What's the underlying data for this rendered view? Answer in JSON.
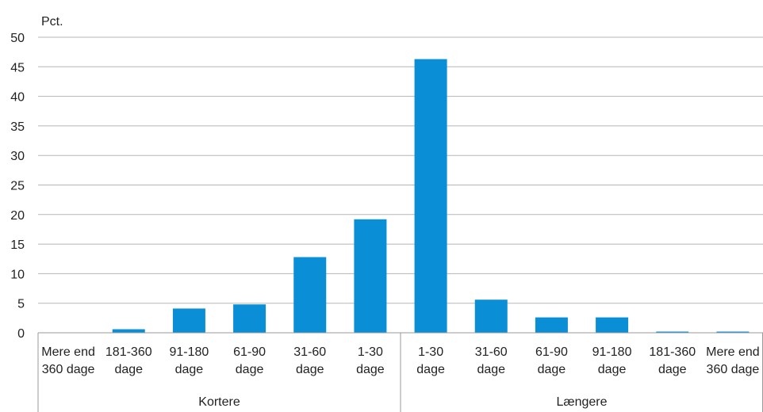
{
  "chart_data": {
    "type": "bar",
    "ylabel": "Pct.",
    "ylim": [
      0,
      50
    ],
    "yticks": [
      0,
      5,
      10,
      15,
      20,
      25,
      30,
      35,
      40,
      45,
      50
    ],
    "grid": true,
    "categories": [
      [
        "Mere end",
        "360 dage"
      ],
      [
        "181-360",
        "dage"
      ],
      [
        "91-180",
        "dage"
      ],
      [
        "61-90",
        "dage"
      ],
      [
        "31-60",
        "dage"
      ],
      [
        "1-30",
        "dage"
      ],
      [
        "1-30",
        "dage"
      ],
      [
        "31-60",
        "dage"
      ],
      [
        "61-90",
        "dage"
      ],
      [
        "91-180",
        "dage"
      ],
      [
        "181-360",
        "dage"
      ],
      [
        "Mere end",
        "360 dage"
      ]
    ],
    "values": [
      0,
      0.6,
      4.1,
      4.8,
      12.8,
      19.2,
      46.3,
      5.6,
      2.6,
      2.6,
      0.2,
      0.2
    ],
    "groups": [
      {
        "label": "Kortere",
        "count": 6
      },
      {
        "label": "Længere",
        "count": 6
      }
    ],
    "colors": {
      "bar": "#0a8fd7",
      "grid": "#b5b5b5",
      "axis": "#9a9a9a"
    }
  }
}
